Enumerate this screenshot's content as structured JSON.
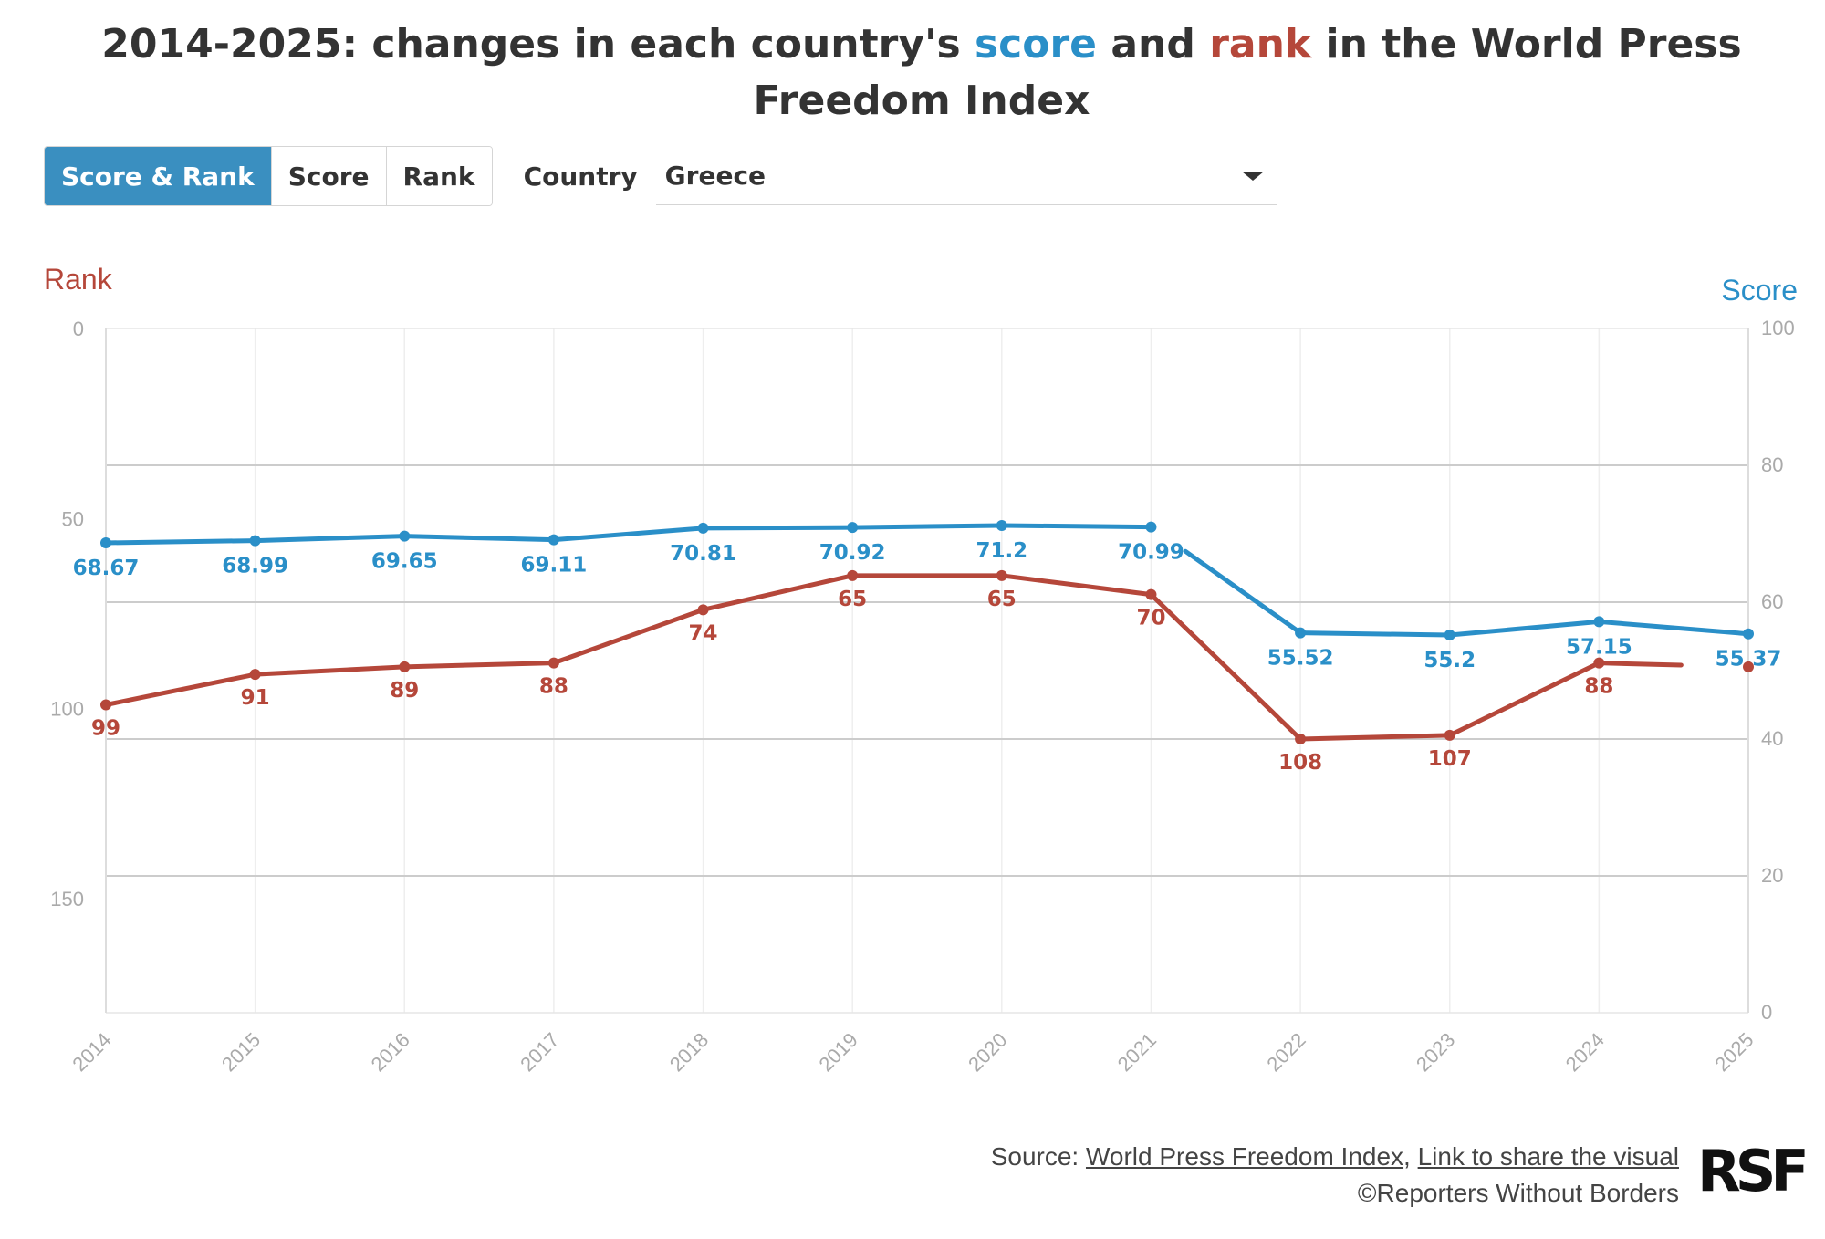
{
  "title": {
    "prefix": "2014-2025: changes in each country's ",
    "score_word": "score",
    "middle": " and ",
    "rank_word": "rank",
    "suffix": " in the World Press Freedom Index"
  },
  "controls": {
    "tabs": [
      "Score & Rank",
      "Score",
      "Rank"
    ],
    "active_tab": "Score & Rank",
    "country_label": "Country",
    "country_value": "Greece"
  },
  "axes": {
    "left_title": "Rank",
    "right_title": "Score"
  },
  "chart_data": {
    "type": "line",
    "title": "2014-2025: changes in each country's score and rank in the World Press Freedom Index",
    "x": [
      "2014",
      "2015",
      "2016",
      "2017",
      "2018",
      "2019",
      "2020",
      "2021",
      "2022",
      "2023",
      "2024",
      "2025"
    ],
    "series": [
      {
        "name": "Score",
        "axis": "right",
        "color": "#2a8fc8",
        "values": [
          68.67,
          68.99,
          69.65,
          69.11,
          70.81,
          70.92,
          71.2,
          70.99,
          55.52,
          55.2,
          57.15,
          55.37
        ],
        "labels": [
          "68.67",
          "68.99",
          "69.65",
          "69.11",
          "70.81",
          "70.92",
          "71.2",
          "70.99",
          "55.52",
          "55.2",
          "57.15",
          "55.37"
        ]
      },
      {
        "name": "Rank",
        "axis": "left",
        "color": "#b5473a",
        "values": [
          99,
          91,
          89,
          88,
          74,
          65,
          65,
          70,
          108,
          107,
          88,
          89
        ],
        "labels": [
          "99",
          "91",
          "89",
          "88",
          "74",
          "65",
          "65",
          "70",
          "108",
          "107",
          "88",
          ""
        ]
      }
    ],
    "left_axis": {
      "label": "Rank",
      "range": [
        0,
        180
      ],
      "inverted": true,
      "ticks": [
        "0",
        "50",
        "100",
        "150"
      ]
    },
    "right_axis": {
      "label": "Score",
      "range": [
        0,
        100
      ],
      "ticks": [
        "100",
        "80",
        "60",
        "40",
        "20",
        "0"
      ]
    },
    "grid": true
  },
  "footer": {
    "source_prefix": "Source: ",
    "source_link": "World Press Freedom Index",
    "separator": ", ",
    "share_link": "Link to share the visual",
    "copyright": "©Reporters Without Borders",
    "logo_text": "RSF"
  }
}
